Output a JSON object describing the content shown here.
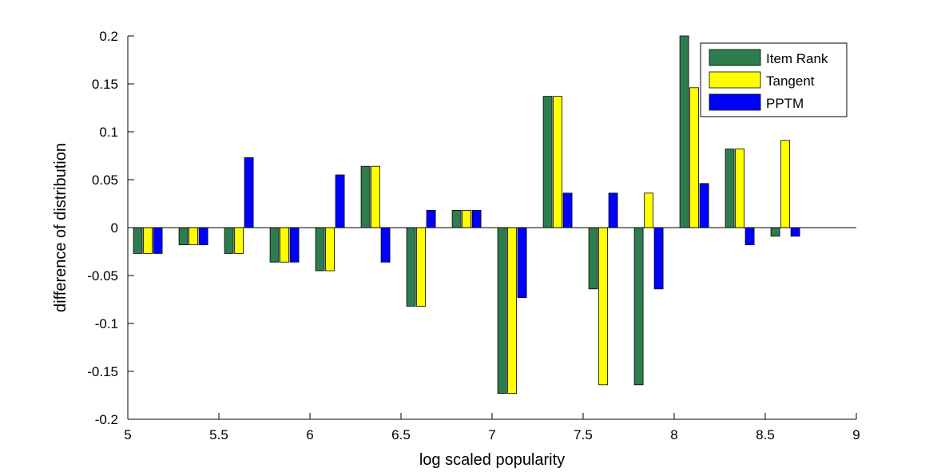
{
  "chart_data": {
    "type": "bar",
    "title": "",
    "xlabel": "log scaled popularity",
    "ylabel": "difference of distribution",
    "xlim": [
      5,
      9
    ],
    "ylim": [
      -0.2,
      0.2
    ],
    "xticks": [
      5,
      5.5,
      6,
      6.5,
      7,
      7.5,
      8,
      8.5,
      9
    ],
    "xtick_labels": [
      "5",
      "5.5",
      "6",
      "6.5",
      "7",
      "7.5",
      "8",
      "8.5",
      "9"
    ],
    "yticks": [
      -0.2,
      -0.15,
      -0.1,
      -0.05,
      0,
      0.05,
      0.1,
      0.15,
      0.2
    ],
    "ytick_labels": [
      "-0.2",
      "-0.15",
      "-0.1",
      "-0.05",
      "0",
      "0.05",
      "0.1",
      "0.15",
      "0.2"
    ],
    "grid": false,
    "legend_position": "top-right",
    "x": [
      5.11,
      5.36,
      5.61,
      5.86,
      6.11,
      6.36,
      6.61,
      6.86,
      7.11,
      7.36,
      7.61,
      7.86,
      8.11,
      8.36,
      8.61
    ],
    "series": [
      {
        "name": "Item Rank",
        "color": "#2e7d4f",
        "values": [
          -0.027,
          -0.018,
          -0.027,
          -0.036,
          -0.045,
          0.064,
          -0.082,
          0.018,
          -0.173,
          0.137,
          -0.064,
          -0.164,
          0.2,
          0.082,
          -0.009
        ]
      },
      {
        "name": "Tangent",
        "color": "#ffff00",
        "values": [
          -0.027,
          -0.018,
          -0.027,
          -0.036,
          -0.045,
          0.064,
          -0.082,
          0.018,
          -0.173,
          0.137,
          -0.164,
          0.036,
          0.146,
          0.082,
          0.091
        ]
      },
      {
        "name": "PPTM",
        "color": "#0000ff",
        "values": [
          -0.027,
          -0.018,
          0.073,
          -0.036,
          0.055,
          -0.036,
          0.018,
          0.018,
          -0.073,
          0.036,
          0.036,
          -0.064,
          0.046,
          -0.018,
          -0.009
        ]
      }
    ]
  }
}
